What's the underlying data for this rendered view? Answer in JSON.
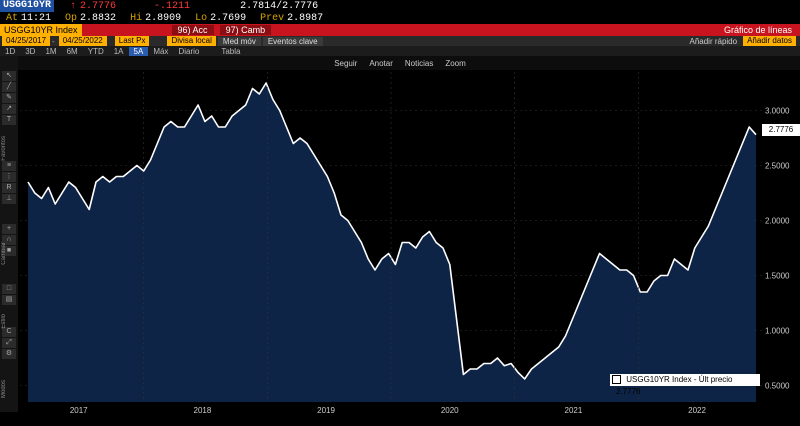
{
  "header": {
    "ticker": "USGG10YR",
    "arrow": "↑",
    "last": "2.7776",
    "change": "-.1211",
    "bidask": "2.7814/2.7776",
    "at_label": "At",
    "time": "11:21",
    "op_label": "Op",
    "op": "2.8832",
    "hi_label": "Hi",
    "hi": "2.8909",
    "lo_label": "Lo",
    "lo": "2.7699",
    "prev_label": "Prev",
    "prev": "2.8987"
  },
  "menubar": {
    "security": "USGG10YR Index",
    "actions": "96) Acc",
    "edit": "97) Camb",
    "title": "Gráfico de líneas"
  },
  "fields": {
    "start": "04/25/2017",
    "end": "04/25/2022",
    "price": "Last Px",
    "currency": "Divisa local",
    "avg": "Med móv",
    "events": "Eventos clave",
    "quick": "Añadir rápido",
    "add_data": "Añadir datos"
  },
  "periods": [
    {
      "label": "1D",
      "active": false
    },
    {
      "label": "3D",
      "active": false
    },
    {
      "label": "1M",
      "active": false
    },
    {
      "label": "6M",
      "active": false
    },
    {
      "label": "YTD",
      "active": false
    },
    {
      "label": "1A",
      "active": false
    },
    {
      "label": "5A",
      "active": true
    },
    {
      "label": "Máx",
      "active": false
    },
    {
      "label": "Diario",
      "active": false
    },
    {
      "label": "Tabla",
      "active": false
    }
  ],
  "toolbar": {
    "follow": "Seguir",
    "annotate": "Anotar",
    "news": "Noticias",
    "zoom": "Zoom"
  },
  "leftbar": {
    "favorites": "Favoritos",
    "change": "Cambiar",
    "style": "Estilo",
    "modes": "Modos"
  },
  "legend": {
    "series": "USGG10YR Index - Últ precio",
    "value": "2.7776"
  },
  "chart_data": {
    "type": "area",
    "x_labels": [
      "2017",
      "2018",
      "2019",
      "2020",
      "2021",
      "2022"
    ],
    "y_ticks": [
      "3.0000",
      "2.5000",
      "2.0000",
      "1.5000",
      "1.0000",
      "0.5000"
    ],
    "ylim": [
      0.35,
      3.35
    ],
    "last_value": "2.7776",
    "series": [
      {
        "name": "USGG10YR Index - Últ precio",
        "values": [
          2.35,
          2.25,
          2.2,
          2.3,
          2.15,
          2.25,
          2.35,
          2.3,
          2.2,
          2.1,
          2.35,
          2.4,
          2.35,
          2.4,
          2.4,
          2.45,
          2.5,
          2.45,
          2.55,
          2.7,
          2.85,
          2.9,
          2.85,
          2.85,
          2.95,
          3.05,
          2.9,
          2.95,
          2.85,
          2.85,
          2.95,
          3.0,
          3.05,
          3.2,
          3.15,
          3.25,
          3.1,
          3.0,
          2.85,
          2.7,
          2.75,
          2.7,
          2.6,
          2.5,
          2.4,
          2.25,
          2.05,
          2.0,
          1.9,
          1.8,
          1.65,
          1.55,
          1.65,
          1.7,
          1.6,
          1.8,
          1.8,
          1.75,
          1.85,
          1.9,
          1.8,
          1.75,
          1.6,
          1.1,
          0.6,
          0.65,
          0.65,
          0.7,
          0.7,
          0.75,
          0.68,
          0.7,
          0.62,
          0.56,
          0.65,
          0.7,
          0.75,
          0.8,
          0.85,
          0.95,
          1.1,
          1.25,
          1.4,
          1.55,
          1.7,
          1.65,
          1.6,
          1.55,
          1.55,
          1.5,
          1.35,
          1.35,
          1.45,
          1.5,
          1.5,
          1.65,
          1.6,
          1.55,
          1.75,
          1.85,
          1.95,
          2.1,
          2.25,
          2.4,
          2.55,
          2.7,
          2.85,
          2.78
        ]
      }
    ]
  }
}
